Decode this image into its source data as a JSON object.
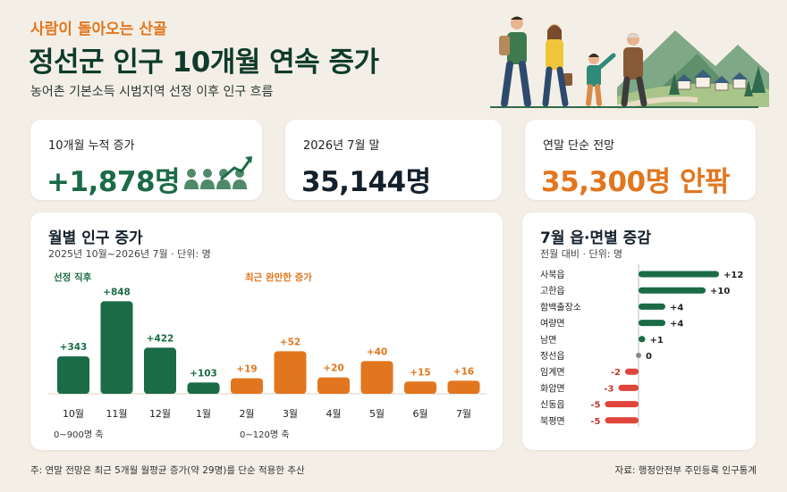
{
  "header": {
    "kicker": "사람이 돌아오는 산골",
    "title": "정선군 인구 10개월 연속 증가",
    "subtitle": "농어촌 기본소득 시범지역 선정 이후 인구 흐름"
  },
  "kpis": [
    {
      "label": "10개월 누적 증가",
      "value": "+1,878명",
      "accent": "#1b6b47"
    },
    {
      "label": "2026년 7월 말",
      "value": "35,144명",
      "accent": "#14202b"
    },
    {
      "label": "연말 단순 전망",
      "value": "35,300명 안팎",
      "accent": "#e2761e"
    }
  ],
  "monthly": {
    "title": "월별 인구 증가",
    "subtitle": "2025년 10월~2026년 7월 · 단위: 명",
    "group1_label": "선정 직후",
    "group2_label": "최근 완만한 증가",
    "group1_axis_note": "0~900명 축",
    "group2_axis_note": "0~120명 축"
  },
  "regions": {
    "title": "7월 읍·면별 증감",
    "subtitle": "전월 대비 · 단위: 명"
  },
  "footer": {
    "note": "주: 연말 전망은 최근 5개월 월평균 증가(약 29명)를 단순 적용한 추산",
    "source": "자료: 행정안전부 주민등록 인구통계"
  },
  "colors": {
    "green": "#1b6b47",
    "orange": "#e2761e",
    "red": "#e0443a",
    "gray": "#888888"
  },
  "chart_data": [
    {
      "type": "bar",
      "categories": [
        "10월",
        "11월",
        "12월",
        "1월",
        "2월",
        "3월",
        "4월",
        "5월",
        "6월",
        "7월"
      ],
      "values": [
        343,
        848,
        422,
        103,
        19,
        52,
        20,
        40,
        15,
        16
      ],
      "data_labels": [
        "+343",
        "+848",
        "+422",
        "+103",
        "+19",
        "+52",
        "+20",
        "+40",
        "+15",
        "+16"
      ],
      "title": "월별 인구 증가",
      "group1": {
        "indices": [
          0,
          1,
          2,
          3
        ],
        "ylim": [
          0,
          900
        ],
        "color": "#1b6b47"
      },
      "group2": {
        "indices": [
          4,
          5,
          6,
          7,
          8,
          9
        ],
        "ylim": [
          0,
          120
        ],
        "color": "#e2761e"
      },
      "grid": false,
      "legend": "none"
    },
    {
      "type": "bar",
      "orientation": "horizontal",
      "categories": [
        "사북읍",
        "고한읍",
        "함백출장소",
        "여량면",
        "남면",
        "정선읍",
        "임계면",
        "화암면",
        "신동읍",
        "북평면"
      ],
      "values": [
        12,
        10,
        4,
        4,
        1,
        0,
        -2,
        -3,
        -5,
        -5
      ],
      "data_labels": [
        "+12",
        "+10",
        "+4",
        "+4",
        "+1",
        "0",
        "-2",
        "-3",
        "-5",
        "-5"
      ],
      "title": "7월 읍·면별 증감",
      "xlim": [
        -5,
        12
      ]
    }
  ]
}
